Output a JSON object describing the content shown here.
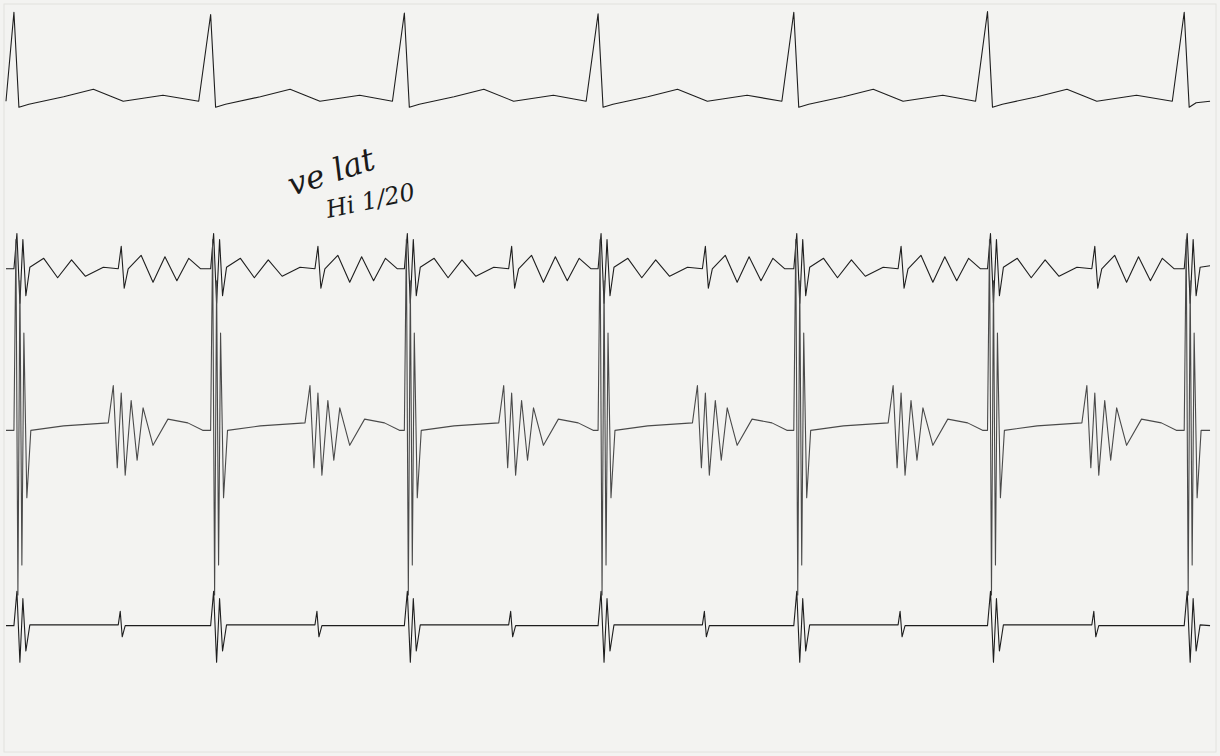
{
  "chart_data": {
    "type": "line",
    "xlim": [
      0,
      1220
    ],
    "ylim": [
      0,
      100
    ],
    "tick_labels": false,
    "grid": false,
    "annotations": [
      "ve lat",
      "Hi 1/20"
    ],
    "series": [
      {
        "color": "#1e1e1e",
        "x": [
          2,
          10,
          15,
          25,
          60,
          90,
          120,
          160,
          196,
          208,
          213,
          223,
          258,
          288,
          318,
          358,
          391,
          403,
          408,
          418,
          453,
          483,
          513,
          553,
          586,
          598,
          603,
          613,
          648,
          678,
          708,
          748,
          783,
          795,
          800,
          810,
          845,
          875,
          905,
          945,
          978,
          990,
          995,
          1005,
          1040,
          1070,
          1100,
          1140,
          1176,
          1188,
          1193,
          1200,
          1214
        ],
        "values": [
          87.0,
          98.9,
          86.2,
          86.6,
          87.6,
          88.6,
          87.0,
          87.8,
          87.0,
          98.6,
          86.2,
          86.6,
          87.6,
          88.6,
          87.0,
          87.8,
          87.0,
          98.8,
          86.2,
          86.6,
          87.6,
          88.6,
          87.0,
          87.8,
          87.0,
          98.7,
          86.2,
          86.6,
          87.6,
          88.6,
          87.0,
          87.8,
          87.0,
          98.9,
          86.2,
          86.6,
          87.6,
          88.6,
          87.0,
          87.8,
          87.0,
          99.0,
          86.2,
          86.6,
          87.6,
          88.6,
          87.0,
          87.8,
          87.0,
          98.9,
          86.2,
          86.8,
          87.0
        ]
      },
      {
        "color": "#1e1e1e",
        "x": [
          2,
          10,
          13,
          16,
          19,
          22,
          26,
          40,
          54,
          68,
          82,
          100,
          115,
          118,
          121,
          125,
          138,
          150,
          162,
          174,
          186,
          198,
          208,
          211,
          214,
          217,
          220,
          224,
          238,
          252,
          266,
          280,
          298,
          313,
          316,
          319,
          323,
          336,
          348,
          360,
          372,
          384,
          396,
          403,
          406,
          409,
          412,
          415,
          419,
          433,
          447,
          461,
          475,
          493,
          508,
          511,
          514,
          518,
          531,
          543,
          555,
          567,
          579,
          591,
          598,
          601,
          604,
          607,
          610,
          614,
          628,
          642,
          656,
          670,
          688,
          703,
          706,
          709,
          713,
          726,
          738,
          750,
          762,
          774,
          786,
          795,
          798,
          801,
          804,
          807,
          811,
          825,
          839,
          853,
          867,
          885,
          900,
          903,
          906,
          910,
          923,
          935,
          947,
          959,
          971,
          983,
          990,
          993,
          996,
          999,
          1002,
          1006,
          1020,
          1034,
          1048,
          1062,
          1080,
          1095,
          1098,
          1101,
          1105,
          1118,
          1130,
          1142,
          1154,
          1166,
          1178,
          1188,
          1191,
          1194,
          1197,
          1200,
          1204,
          1214
        ],
        "values": [
          64.6,
          64.6,
          69.3,
          60.0,
          68.5,
          61.0,
          64.8,
          66.0,
          63.4,
          65.8,
          63.6,
          64.8,
          64.6,
          67.6,
          62.0,
          64.6,
          66.4,
          62.8,
          66.2,
          63.0,
          66.0,
          64.6,
          64.6,
          69.3,
          60.0,
          68.5,
          61.0,
          64.8,
          66.0,
          63.4,
          65.8,
          63.6,
          64.8,
          64.6,
          67.6,
          62.0,
          64.6,
          66.4,
          62.8,
          66.2,
          63.0,
          66.0,
          64.6,
          64.6,
          69.3,
          60.0,
          68.5,
          61.0,
          64.8,
          66.0,
          63.4,
          65.8,
          63.6,
          64.8,
          64.6,
          67.6,
          62.0,
          64.6,
          66.4,
          62.8,
          66.2,
          63.0,
          66.0,
          64.6,
          64.6,
          69.3,
          60.0,
          68.5,
          61.0,
          64.8,
          66.0,
          63.4,
          65.8,
          63.6,
          64.8,
          64.6,
          67.6,
          62.0,
          64.6,
          66.4,
          62.8,
          66.2,
          63.0,
          66.0,
          64.6,
          64.6,
          69.3,
          60.0,
          68.5,
          61.0,
          64.8,
          66.0,
          63.4,
          65.8,
          63.6,
          64.8,
          64.6,
          67.6,
          62.0,
          64.6,
          66.4,
          62.8,
          66.2,
          63.0,
          66.0,
          64.6,
          64.6,
          69.3,
          60.0,
          68.5,
          61.0,
          64.8,
          66.0,
          63.4,
          65.8,
          63.6,
          64.8,
          64.6,
          67.6,
          62.0,
          64.6,
          66.4,
          62.8,
          66.2,
          63.0,
          66.0,
          64.6,
          64.6,
          69.3,
          60.0,
          68.5,
          61.0,
          64.8,
          65.0
        ]
      },
      {
        "color": "#4a4a4a",
        "x": [
          2,
          10,
          12,
          14,
          16,
          18,
          20,
          23,
          27,
          60,
          105,
          110,
          114,
          118,
          122,
          128,
          134,
          140,
          150,
          165,
          185,
          200,
          208,
          210,
          212,
          214,
          216,
          218,
          221,
          225,
          258,
          303,
          308,
          312,
          316,
          320,
          326,
          332,
          338,
          348,
          363,
          383,
          398,
          403,
          405,
          407,
          409,
          411,
          413,
          416,
          420,
          453,
          498,
          503,
          507,
          511,
          515,
          521,
          527,
          533,
          543,
          558,
          578,
          593,
          598,
          600,
          602,
          604,
          606,
          608,
          611,
          615,
          648,
          693,
          698,
          702,
          706,
          710,
          716,
          722,
          728,
          738,
          753,
          773,
          788,
          795,
          797,
          799,
          801,
          803,
          805,
          808,
          812,
          845,
          890,
          895,
          899,
          903,
          907,
          913,
          919,
          925,
          935,
          950,
          970,
          985,
          990,
          992,
          994,
          996,
          998,
          1000,
          1003,
          1007,
          1040,
          1085,
          1090,
          1094,
          1098,
          1102,
          1108,
          1114,
          1120,
          1130,
          1145,
          1165,
          1180,
          1188,
          1190,
          1192,
          1194,
          1196,
          1198,
          1201,
          1205,
          1214
        ],
        "values": [
          43.0,
          43.0,
          68.5,
          21.0,
          63.0,
          25.0,
          56.0,
          34.0,
          43.0,
          43.6,
          44.0,
          49.0,
          38.0,
          48.0,
          37.0,
          47.0,
          39.0,
          46.0,
          41.0,
          44.5,
          44.0,
          43.0,
          43.0,
          68.5,
          21.0,
          63.0,
          25.0,
          56.0,
          34.0,
          43.0,
          43.6,
          44.0,
          49.0,
          38.0,
          48.0,
          37.0,
          47.0,
          39.0,
          46.0,
          41.0,
          44.5,
          44.0,
          43.0,
          43.0,
          68.5,
          21.0,
          63.0,
          25.0,
          56.0,
          34.0,
          43.0,
          43.6,
          44.0,
          49.0,
          38.0,
          48.0,
          37.0,
          47.0,
          39.0,
          46.0,
          41.0,
          44.5,
          44.0,
          43.0,
          43.0,
          68.5,
          21.0,
          63.0,
          25.0,
          56.0,
          34.0,
          43.0,
          43.6,
          44.0,
          49.0,
          38.0,
          48.0,
          37.0,
          47.0,
          39.0,
          46.0,
          41.0,
          44.5,
          44.0,
          43.0,
          43.0,
          68.5,
          21.0,
          63.0,
          25.0,
          56.0,
          34.0,
          43.0,
          43.6,
          44.0,
          49.0,
          38.0,
          48.0,
          37.0,
          47.0,
          39.0,
          46.0,
          41.0,
          44.5,
          44.0,
          43.0,
          43.0,
          68.5,
          21.0,
          63.0,
          25.0,
          56.0,
          34.0,
          43.0,
          43.6,
          44.0,
          49.0,
          38.0,
          48.0,
          37.0,
          47.0,
          39.0,
          46.0,
          41.0,
          44.5,
          44.0,
          43.0,
          43.0,
          68.5,
          21.0,
          63.0,
          25.0,
          56.0,
          34.0,
          43.0,
          43.0
        ]
      },
      {
        "color": "#1e1e1e",
        "x": [
          2,
          10,
          13,
          16,
          19,
          22,
          26,
          115,
          117,
          119,
          122,
          208,
          211,
          214,
          217,
          220,
          224,
          313,
          315,
          317,
          320,
          403,
          406,
          409,
          412,
          415,
          419,
          508,
          510,
          512,
          515,
          598,
          601,
          604,
          607,
          610,
          614,
          703,
          705,
          707,
          710,
          795,
          798,
          801,
          804,
          807,
          811,
          900,
          902,
          904,
          907,
          990,
          993,
          996,
          999,
          1002,
          1006,
          1095,
          1097,
          1099,
          1102,
          1188,
          1191,
          1194,
          1197,
          1200,
          1204,
          1214
        ],
        "values": [
          16.9,
          16.9,
          21.5,
          12.0,
          20.5,
          13.5,
          17.0,
          17.0,
          18.8,
          15.4,
          16.9,
          16.9,
          21.5,
          12.0,
          20.5,
          13.5,
          17.0,
          17.0,
          18.8,
          15.4,
          16.9,
          16.9,
          21.5,
          12.0,
          20.5,
          13.5,
          17.0,
          17.0,
          18.8,
          15.4,
          16.9,
          16.9,
          21.5,
          12.0,
          20.5,
          13.5,
          17.0,
          17.0,
          18.8,
          15.4,
          16.9,
          16.9,
          21.5,
          12.0,
          20.5,
          13.5,
          17.0,
          17.0,
          18.8,
          15.4,
          16.9,
          16.9,
          21.5,
          12.0,
          20.5,
          13.5,
          17.0,
          17.0,
          18.8,
          15.4,
          16.9,
          16.9,
          21.5,
          12.0,
          20.5,
          13.5,
          17.0,
          16.9
        ]
      }
    ]
  }
}
